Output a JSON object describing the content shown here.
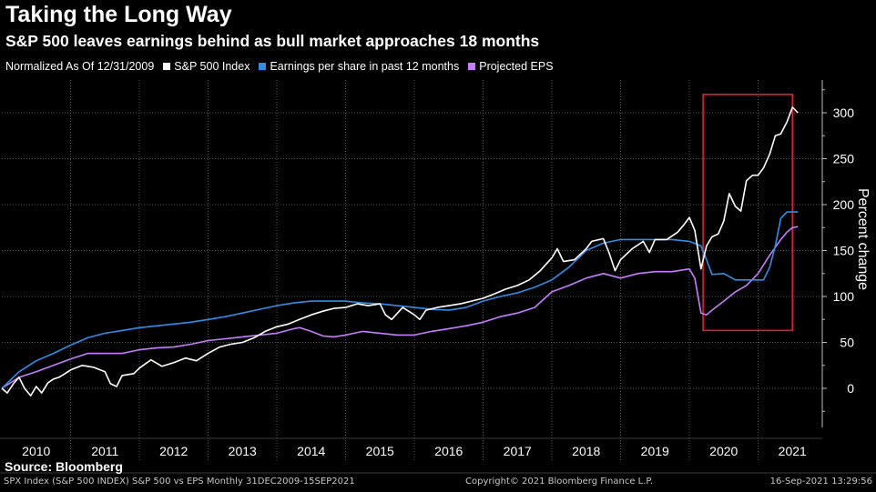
{
  "header": {
    "title": "Taking the Long Way",
    "subtitle": "S&P 500 leaves earnings behind as bull market approaches 18 months"
  },
  "legend": {
    "note": "Normalized As Of 12/31/2009",
    "items": [
      {
        "label": "S&P 500 Index",
        "color": "#ffffff"
      },
      {
        "label": "Earnings per share in past 12 months",
        "color": "#2f8fe8"
      },
      {
        "label": "Projected EPS",
        "color": "#c77dff"
      }
    ]
  },
  "source": "Source: Bloomberg",
  "footer": {
    "left": "SPX Index (S&P 500 INDEX) S&P 500 vs EPS  Monthly 31DEC2009-15SEP2021",
    "center": "Copyright© 2021 Bloomberg Finance L.P.",
    "right": "16-Sep-2021 13:29:56"
  },
  "highlight_color": "#e0202e",
  "chart_data": {
    "type": "line",
    "title": "Taking the Long Way",
    "subtitle": "S&P 500 leaves earnings behind as bull market approaches 18 months",
    "ylabel": "Percent change",
    "ylim": [
      -40,
      335
    ],
    "xlim": [
      2010.0,
      2021.75
    ],
    "yticks": [
      0,
      50,
      100,
      150,
      200,
      250,
      300
    ],
    "xticks": [
      "2010",
      "2011",
      "2012",
      "2013",
      "2014",
      "2015",
      "2016",
      "2017",
      "2018",
      "2019",
      "2020",
      "2021"
    ],
    "grid": true,
    "legend_position": "top-left",
    "highlight": {
      "x": [
        2020.2,
        2021.5
      ],
      "y": [
        63,
        320
      ]
    },
    "series": [
      {
        "name": "S&P 500 Index",
        "color": "#ffffff",
        "points": [
          [
            2010.0,
            0
          ],
          [
            2010.08,
            -5
          ],
          [
            2010.17,
            5
          ],
          [
            2010.25,
            12
          ],
          [
            2010.33,
            0
          ],
          [
            2010.42,
            -8
          ],
          [
            2010.5,
            2
          ],
          [
            2010.58,
            -5
          ],
          [
            2010.67,
            6
          ],
          [
            2010.75,
            10
          ],
          [
            2010.83,
            12
          ],
          [
            2010.92,
            16
          ],
          [
            2011.0,
            20
          ],
          [
            2011.17,
            25
          ],
          [
            2011.33,
            23
          ],
          [
            2011.5,
            18
          ],
          [
            2011.58,
            5
          ],
          [
            2011.67,
            2
          ],
          [
            2011.75,
            14
          ],
          [
            2011.92,
            16
          ],
          [
            2012.0,
            22
          ],
          [
            2012.17,
            31
          ],
          [
            2012.33,
            24
          ],
          [
            2012.5,
            28
          ],
          [
            2012.67,
            33
          ],
          [
            2012.83,
            30
          ],
          [
            2013.0,
            38
          ],
          [
            2013.17,
            45
          ],
          [
            2013.33,
            48
          ],
          [
            2013.5,
            50
          ],
          [
            2013.67,
            55
          ],
          [
            2013.83,
            62
          ],
          [
            2014.0,
            67
          ],
          [
            2014.17,
            70
          ],
          [
            2014.33,
            75
          ],
          [
            2014.5,
            80
          ],
          [
            2014.67,
            84
          ],
          [
            2014.83,
            87
          ],
          [
            2015.0,
            88
          ],
          [
            2015.17,
            92
          ],
          [
            2015.33,
            90
          ],
          [
            2015.5,
            92
          ],
          [
            2015.58,
            80
          ],
          [
            2015.67,
            75
          ],
          [
            2015.83,
            88
          ],
          [
            2016.0,
            80
          ],
          [
            2016.08,
            75
          ],
          [
            2016.17,
            85
          ],
          [
            2016.33,
            88
          ],
          [
            2016.5,
            90
          ],
          [
            2016.67,
            92
          ],
          [
            2016.83,
            95
          ],
          [
            2017.0,
            98
          ],
          [
            2017.17,
            103
          ],
          [
            2017.33,
            108
          ],
          [
            2017.5,
            112
          ],
          [
            2017.67,
            118
          ],
          [
            2017.83,
            128
          ],
          [
            2018.0,
            142
          ],
          [
            2018.08,
            152
          ],
          [
            2018.17,
            138
          ],
          [
            2018.33,
            140
          ],
          [
            2018.5,
            152
          ],
          [
            2018.58,
            160
          ],
          [
            2018.75,
            163
          ],
          [
            2018.83,
            148
          ],
          [
            2018.92,
            128
          ],
          [
            2019.0,
            140
          ],
          [
            2019.17,
            152
          ],
          [
            2019.33,
            160
          ],
          [
            2019.42,
            148
          ],
          [
            2019.5,
            162
          ],
          [
            2019.67,
            162
          ],
          [
            2019.83,
            170
          ],
          [
            2019.92,
            178
          ],
          [
            2020.0,
            186
          ],
          [
            2020.08,
            172
          ],
          [
            2020.17,
            130
          ],
          [
            2020.25,
            155
          ],
          [
            2020.33,
            165
          ],
          [
            2020.42,
            168
          ],
          [
            2020.5,
            182
          ],
          [
            2020.58,
            212
          ],
          [
            2020.67,
            198
          ],
          [
            2020.75,
            193
          ],
          [
            2020.83,
            226
          ],
          [
            2020.92,
            232
          ],
          [
            2021.0,
            232
          ],
          [
            2021.08,
            240
          ],
          [
            2021.17,
            255
          ],
          [
            2021.25,
            275
          ],
          [
            2021.33,
            277
          ],
          [
            2021.42,
            290
          ],
          [
            2021.5,
            306
          ],
          [
            2021.58,
            300
          ]
        ]
      },
      {
        "name": "Earnings per share in past 12 months",
        "color": "#2f8fe8",
        "points": [
          [
            2010.0,
            0
          ],
          [
            2010.25,
            18
          ],
          [
            2010.5,
            30
          ],
          [
            2010.75,
            38
          ],
          [
            2011.0,
            47
          ],
          [
            2011.25,
            55
          ],
          [
            2011.5,
            60
          ],
          [
            2011.75,
            63
          ],
          [
            2012.0,
            66
          ],
          [
            2012.25,
            68
          ],
          [
            2012.5,
            70
          ],
          [
            2012.75,
            72
          ],
          [
            2013.0,
            75
          ],
          [
            2013.25,
            78
          ],
          [
            2013.5,
            82
          ],
          [
            2013.75,
            86
          ],
          [
            2014.0,
            90
          ],
          [
            2014.25,
            93
          ],
          [
            2014.5,
            95
          ],
          [
            2014.75,
            95
          ],
          [
            2015.0,
            95
          ],
          [
            2015.25,
            93
          ],
          [
            2015.5,
            92
          ],
          [
            2015.75,
            90
          ],
          [
            2016.0,
            88
          ],
          [
            2016.25,
            86
          ],
          [
            2016.5,
            85
          ],
          [
            2016.75,
            88
          ],
          [
            2017.0,
            95
          ],
          [
            2017.25,
            100
          ],
          [
            2017.5,
            104
          ],
          [
            2017.75,
            110
          ],
          [
            2018.0,
            118
          ],
          [
            2018.25,
            132
          ],
          [
            2018.5,
            150
          ],
          [
            2018.75,
            158
          ],
          [
            2019.0,
            162
          ],
          [
            2019.25,
            162
          ],
          [
            2019.5,
            162
          ],
          [
            2019.75,
            162
          ],
          [
            2020.0,
            160
          ],
          [
            2020.17,
            155
          ],
          [
            2020.25,
            140
          ],
          [
            2020.33,
            124
          ],
          [
            2020.5,
            125
          ],
          [
            2020.67,
            118
          ],
          [
            2020.83,
            118
          ],
          [
            2021.0,
            118
          ],
          [
            2021.08,
            118
          ],
          [
            2021.17,
            132
          ],
          [
            2021.25,
            155
          ],
          [
            2021.33,
            185
          ],
          [
            2021.42,
            192
          ],
          [
            2021.58,
            192
          ]
        ]
      },
      {
        "name": "Projected EPS",
        "color": "#c77dff",
        "points": [
          [
            2010.0,
            0
          ],
          [
            2010.25,
            12
          ],
          [
            2010.5,
            18
          ],
          [
            2010.75,
            25
          ],
          [
            2011.0,
            32
          ],
          [
            2011.25,
            38
          ],
          [
            2011.5,
            38
          ],
          [
            2011.75,
            38
          ],
          [
            2012.0,
            42
          ],
          [
            2012.25,
            44
          ],
          [
            2012.5,
            45
          ],
          [
            2012.75,
            48
          ],
          [
            2013.0,
            52
          ],
          [
            2013.25,
            54
          ],
          [
            2013.5,
            56
          ],
          [
            2013.75,
            58
          ],
          [
            2014.0,
            60
          ],
          [
            2014.25,
            65
          ],
          [
            2014.33,
            66
          ],
          [
            2014.5,
            62
          ],
          [
            2014.67,
            57
          ],
          [
            2014.83,
            56
          ],
          [
            2015.0,
            58
          ],
          [
            2015.25,
            62
          ],
          [
            2015.5,
            60
          ],
          [
            2015.75,
            58
          ],
          [
            2016.0,
            58
          ],
          [
            2016.25,
            62
          ],
          [
            2016.5,
            65
          ],
          [
            2016.75,
            68
          ],
          [
            2017.0,
            72
          ],
          [
            2017.25,
            78
          ],
          [
            2017.5,
            82
          ],
          [
            2017.75,
            88
          ],
          [
            2018.0,
            105
          ],
          [
            2018.25,
            112
          ],
          [
            2018.5,
            120
          ],
          [
            2018.75,
            125
          ],
          [
            2019.0,
            120
          ],
          [
            2019.25,
            125
          ],
          [
            2019.5,
            127
          ],
          [
            2019.75,
            127
          ],
          [
            2020.0,
            130
          ],
          [
            2020.08,
            120
          ],
          [
            2020.17,
            82
          ],
          [
            2020.25,
            80
          ],
          [
            2020.33,
            85
          ],
          [
            2020.5,
            95
          ],
          [
            2020.67,
            105
          ],
          [
            2020.83,
            112
          ],
          [
            2021.0,
            125
          ],
          [
            2021.17,
            145
          ],
          [
            2021.33,
            162
          ],
          [
            2021.42,
            170
          ],
          [
            2021.5,
            175
          ],
          [
            2021.58,
            176
          ]
        ]
      }
    ]
  }
}
